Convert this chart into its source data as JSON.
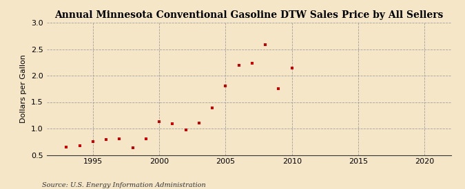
{
  "title": "Annual Minnesota Conventional Gasoline DTW Sales Price by All Sellers",
  "ylabel": "Dollars per Gallon",
  "source": "Source: U.S. Energy Information Administration",
  "years": [
    1993,
    1994,
    1995,
    1996,
    1997,
    1998,
    1999,
    2000,
    2001,
    2002,
    2003,
    2004,
    2005,
    2006,
    2007,
    2008,
    2009,
    2010
  ],
  "values": [
    0.65,
    0.67,
    0.75,
    0.79,
    0.8,
    0.64,
    0.8,
    1.13,
    1.09,
    0.97,
    1.11,
    1.39,
    1.8,
    2.19,
    2.23,
    2.58,
    1.75,
    2.14
  ],
  "marker_color": "#cc0000",
  "bg_color": "#f5e6c8",
  "grid_color": "#999999",
  "xlim": [
    1991.5,
    2022
  ],
  "ylim": [
    0.5,
    3.0
  ],
  "xticks": [
    1995,
    2000,
    2005,
    2010,
    2015,
    2020
  ],
  "yticks": [
    0.5,
    1.0,
    1.5,
    2.0,
    2.5,
    3.0
  ],
  "title_fontsize": 10,
  "label_fontsize": 8,
  "tick_fontsize": 8,
  "source_fontsize": 7
}
